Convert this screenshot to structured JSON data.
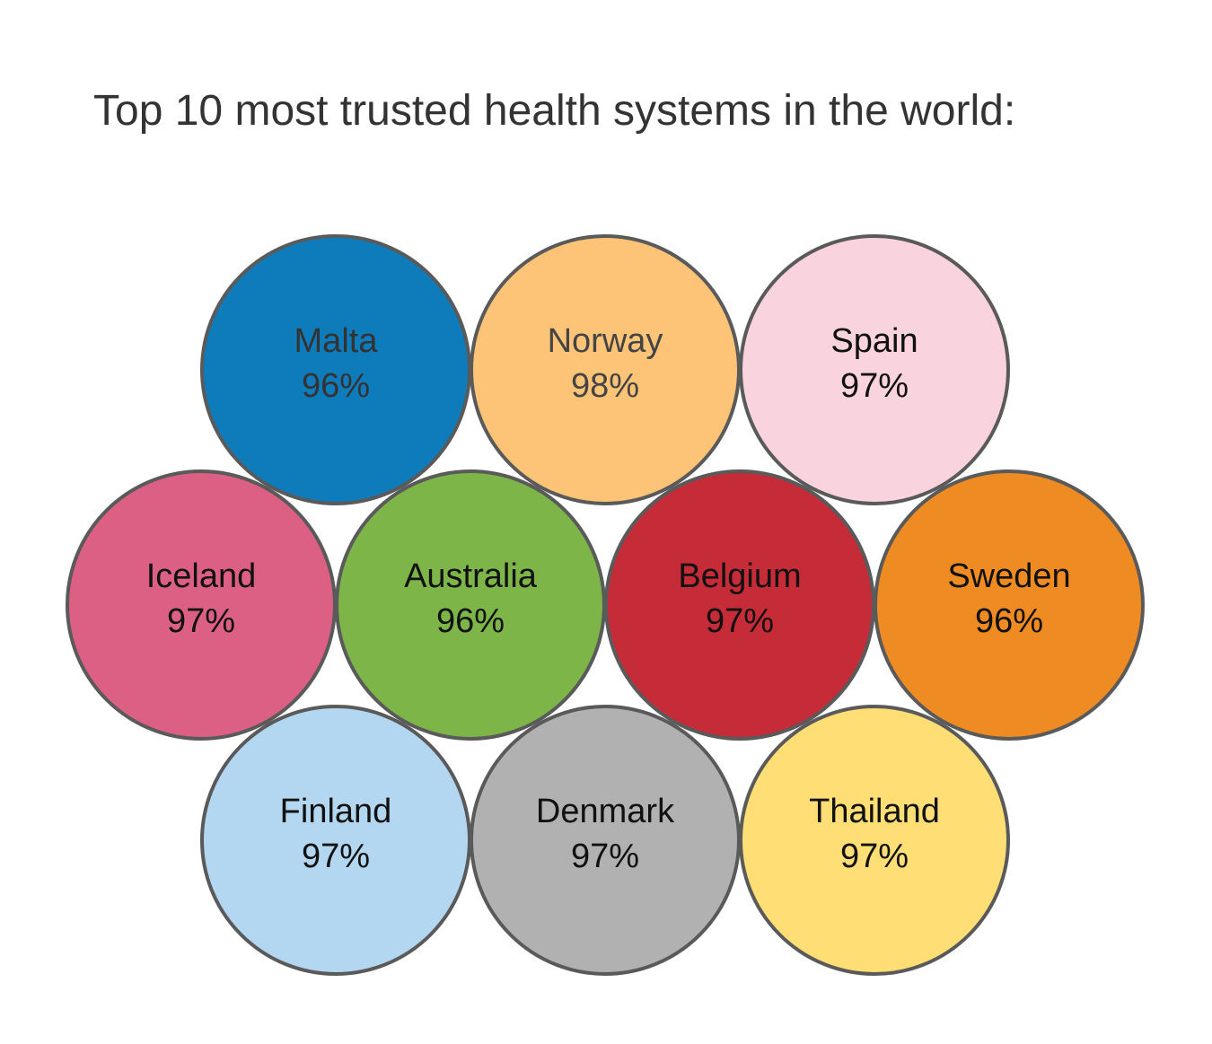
{
  "title": "Top 10 most trusted health systems in the world:",
  "chart_data": {
    "type": "bubble",
    "title": "Top 10 most trusted health systems in the world:",
    "unit": "%",
    "items": [
      {
        "name": "Malta",
        "value": 96,
        "label": "96%",
        "color": "#0e7bbb",
        "text_color": "#333333"
      },
      {
        "name": "Norway",
        "value": 98,
        "label": "98%",
        "color": "#fdc478",
        "text_color": "#444444"
      },
      {
        "name": "Spain",
        "value": 97,
        "label": "97%",
        "color": "#f9d3de",
        "text_color": "#111111"
      },
      {
        "name": "Iceland",
        "value": 97,
        "label": "97%",
        "color": "#dc6084",
        "text_color": "#111111"
      },
      {
        "name": "Australia",
        "value": 96,
        "label": "96%",
        "color": "#7db548",
        "text_color": "#111111"
      },
      {
        "name": "Belgium",
        "value": 97,
        "label": "97%",
        "color": "#c62b38",
        "text_color": "#111111"
      },
      {
        "name": "Sweden",
        "value": 96,
        "label": "96%",
        "color": "#ee8b22",
        "text_color": "#111111"
      },
      {
        "name": "Finland",
        "value": 97,
        "label": "97%",
        "color": "#b3d7f0",
        "text_color": "#111111"
      },
      {
        "name": "Denmark",
        "value": 97,
        "label": "97%",
        "color": "#b1b1b1",
        "text_color": "#111111"
      },
      {
        "name": "Thailand",
        "value": 97,
        "label": "97%",
        "color": "#ffde75",
        "text_color": "#111111"
      }
    ]
  }
}
